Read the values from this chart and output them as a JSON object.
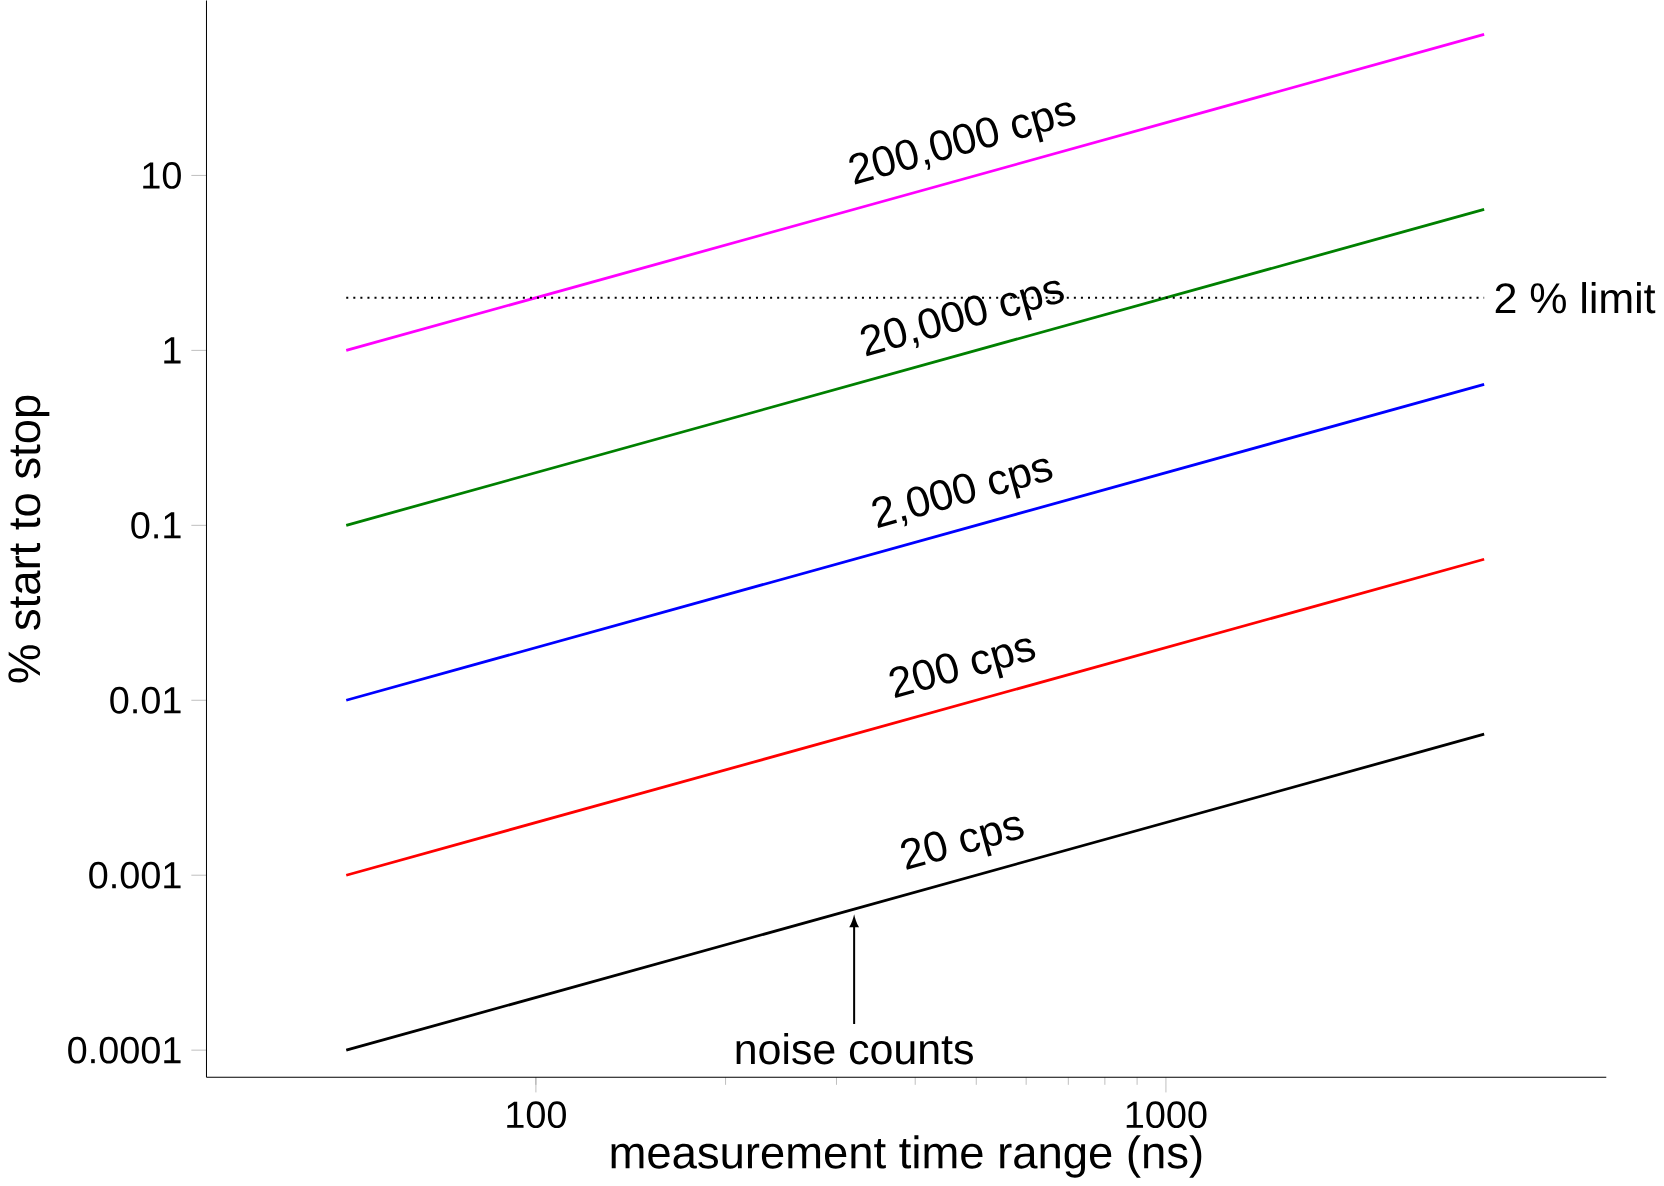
{
  "chart_data": {
    "type": "line",
    "xlabel": "measurement time range (ns)",
    "ylabel": "% start to stop",
    "log": "xy",
    "xlim": [
      30,
      5000
    ],
    "ylim": [
      7e-05,
      100
    ],
    "xticks": [
      100,
      1000
    ],
    "yticks": [
      0.0001,
      0.001,
      0.01,
      0.1,
      1,
      10
    ],
    "x": [
      50,
      3200
    ],
    "series": [
      {
        "name": "20 cps",
        "color": "#000000",
        "values": [
          0.0001,
          0.0064
        ]
      },
      {
        "name": "200 cps",
        "color": "#ff0000",
        "values": [
          0.001,
          0.064
        ]
      },
      {
        "name": "2,000 cps",
        "color": "#0000ff",
        "values": [
          0.01,
          0.64
        ]
      },
      {
        "name": "20,000 cps",
        "color": "#008000",
        "values": [
          0.1,
          6.4
        ]
      },
      {
        "name": "200,000 cps",
        "color": "#ff00ff",
        "values": [
          1,
          64
        ]
      }
    ],
    "ref_lines": [
      {
        "axis": "y",
        "value": 2,
        "label": "2 % limit",
        "line_style": "dotted"
      }
    ],
    "annotations": [
      {
        "text": "noise counts",
        "x": 320,
        "y": 0.00064
      }
    ],
    "marker": "none",
    "line_style": "solid"
  }
}
